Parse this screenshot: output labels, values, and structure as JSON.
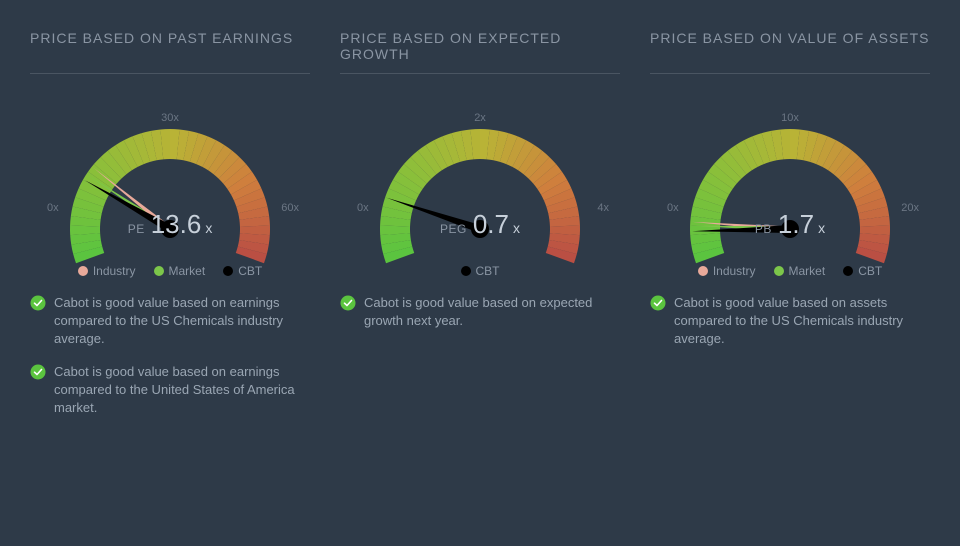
{
  "background_color": "#2e3a48",
  "title_color": "#8a95a3",
  "divider_color": "#4a5562",
  "value_color": "#c7d0da",
  "note_color": "#9aa6b3",
  "gauge": {
    "arc_gradient": [
      "#5bc43f",
      "#8abf3a",
      "#b9b336",
      "#cf7f3d",
      "#b84a44"
    ],
    "needle_cbt": "#000000",
    "needle_industry": "#e8a99a",
    "needle_market": "#7cc64a",
    "hub_color": "#000000",
    "track_bg": "#252f3b"
  },
  "legend_colors": {
    "industry": "#e8a99a",
    "market": "#7cc64a",
    "cbt": "#000000"
  },
  "check_color": "#5bc43f",
  "panels": [
    {
      "title": "PRICE BASED ON PAST EARNINGS",
      "ticks": {
        "start": "0x",
        "mid": "30x",
        "end": "60x"
      },
      "max": 60,
      "metric_label": "PE",
      "metric_value": "13.6",
      "metric_suffix": "x",
      "needles": [
        {
          "kind": "market",
          "value": 14.5
        },
        {
          "kind": "industry",
          "value": 16.0
        },
        {
          "kind": "cbt",
          "value": 13.6
        }
      ],
      "legend": [
        {
          "key": "industry",
          "label": "Industry"
        },
        {
          "key": "market",
          "label": "Market"
        },
        {
          "key": "cbt",
          "label": "CBT"
        }
      ],
      "notes": [
        "Cabot is good value based on earnings compared to the US Chemicals industry average.",
        "Cabot is good value based on earnings compared to the United States of America market."
      ]
    },
    {
      "title": "PRICE BASED ON EXPECTED GROWTH",
      "ticks": {
        "start": "0x",
        "mid": "2x",
        "end": "4x"
      },
      "max": 4,
      "metric_label": "PEG",
      "metric_value": "0.7",
      "metric_suffix": "x",
      "needles": [
        {
          "kind": "cbt",
          "value": 0.7
        }
      ],
      "legend": [
        {
          "key": "cbt",
          "label": "CBT"
        }
      ],
      "notes": [
        "Cabot is good value based on expected growth next year."
      ]
    },
    {
      "title": "PRICE BASED ON VALUE OF ASSETS",
      "ticks": {
        "start": "0x",
        "mid": "10x",
        "end": "20x"
      },
      "max": 20,
      "metric_label": "PB",
      "metric_value": "1.7",
      "metric_suffix": "x",
      "needles": [
        {
          "kind": "industry",
          "value": 2.2
        },
        {
          "kind": "market",
          "value": 2.0
        },
        {
          "kind": "cbt",
          "value": 1.7
        }
      ],
      "legend": [
        {
          "key": "industry",
          "label": "Industry"
        },
        {
          "key": "market",
          "label": "Market"
        },
        {
          "key": "cbt",
          "label": "CBT"
        }
      ],
      "notes": [
        "Cabot is good value based on assets compared to the US Chemicals industry average."
      ]
    }
  ]
}
